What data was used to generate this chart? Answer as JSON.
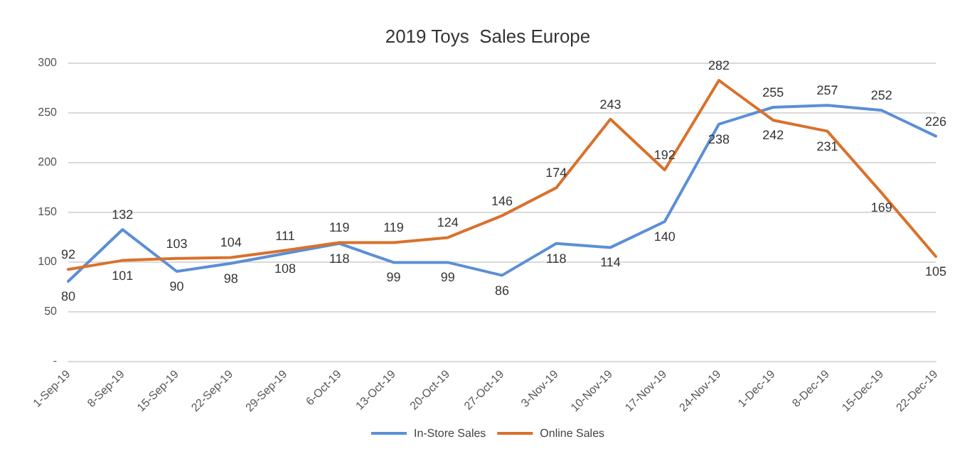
{
  "chart_data": {
    "type": "line",
    "title": "2019 Toys  Sales Europe",
    "categories": [
      "1-Sep-19",
      "8-Sep-19",
      "15-Sep-19",
      "22-Sep-19",
      "29-Sep-19",
      "6-Oct-19",
      "13-Oct-19",
      "20-Oct-19",
      "27-Oct-19",
      "3-Nov-19",
      "10-Nov-19",
      "17-Nov-19",
      "24-Nov-19",
      "1-Dec-19",
      "8-Dec-19",
      "15-Dec-19",
      "22-Dec-19"
    ],
    "series": [
      {
        "name": "In-Store Sales",
        "color": "#5b8fd6",
        "values": [
          80,
          132,
          90,
          98,
          108,
          118,
          99,
          99,
          86,
          118,
          114,
          140,
          238,
          255,
          257,
          252,
          226
        ]
      },
      {
        "name": "Online Sales",
        "color": "#d9712b",
        "values": [
          92,
          101,
          103,
          104,
          111,
          119,
          119,
          124,
          146,
          174,
          243,
          192,
          282,
          242,
          231,
          169,
          105
        ]
      }
    ],
    "ylim": [
      0,
      300
    ],
    "yticks": [
      {
        "value": 0,
        "label": "-"
      },
      50,
      100,
      150,
      200,
      250,
      300
    ],
    "grid": "y",
    "legend": "bottom",
    "data_labels": true,
    "marker": "none",
    "line_style": "solid"
  }
}
